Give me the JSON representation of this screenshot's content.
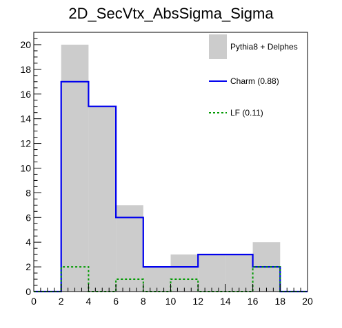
{
  "chart_data": {
    "type": "bar",
    "title": "2D_SecVtx_AbsSigma_Sigma",
    "xlabel": "",
    "ylabel": "",
    "xlim": [
      0,
      20
    ],
    "ylim": [
      0,
      21
    ],
    "bin_edges": [
      0,
      2,
      4,
      6,
      8,
      10,
      12,
      14,
      16,
      18,
      20
    ],
    "x_ticks": [
      0,
      2,
      4,
      6,
      8,
      10,
      12,
      14,
      16,
      18,
      20
    ],
    "x_tick_labels": [
      "0",
      "2",
      "4",
      "6",
      "8",
      "10",
      "12",
      "14",
      "16",
      "18",
      "20"
    ],
    "y_ticks": [
      0,
      2,
      4,
      6,
      8,
      10,
      12,
      14,
      16,
      18,
      20
    ],
    "y_tick_labels": [
      "0",
      "2",
      "4",
      "6",
      "8",
      "10",
      "12",
      "14",
      "16",
      "18",
      "20"
    ],
    "grid": false,
    "legend_position": "top-right",
    "series": [
      {
        "name": "Pythia8 + Delphes",
        "style": "filled",
        "color": "#cccccc",
        "values": [
          0,
          20,
          15,
          7,
          2,
          3,
          3,
          3,
          4,
          0
        ]
      },
      {
        "name": "Charm (0.88)",
        "style": "solid-line",
        "color": "#0000ee",
        "values": [
          0,
          17,
          15,
          6,
          2,
          2,
          3,
          3,
          2,
          0
        ]
      },
      {
        "name": "LF (0.11)",
        "style": "dotted-line",
        "color": "#009900",
        "values": [
          0,
          2,
          0,
          1,
          0,
          1,
          0,
          0,
          2,
          0
        ]
      }
    ]
  }
}
